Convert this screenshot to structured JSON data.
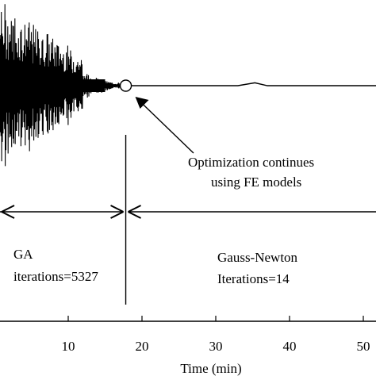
{
  "chart_data": {
    "type": "line",
    "title": "",
    "xlabel": "Time (min)",
    "ylabel": "",
    "xlim": [
      -1,
      52
    ],
    "x_ticks": [
      10,
      20,
      30,
      40,
      50
    ],
    "x_tick_labels": [
      "10",
      "20",
      "30",
      "40",
      "50"
    ],
    "grid": false,
    "legend": "none",
    "series": [
      {
        "description": "GA phase: dense oscillation that decays toward x≈17",
        "x_range": [
          -1,
          17
        ],
        "style": "dense-oscillation"
      },
      {
        "description": "Gauss-Newton phase: nearly flat line with a small bump near x≈35",
        "x": [
          17.8,
          25,
          33,
          35.3,
          37,
          45,
          52
        ],
        "y_relative": [
          0,
          0,
          0,
          0.6,
          0,
          0,
          0
        ]
      }
    ],
    "marker": {
      "x": 17.8,
      "shape": "open-circle"
    },
    "divider_x": 17.8,
    "annotations": {
      "optimization_line1": "Optimization continues",
      "optimization_line2": "using FE models",
      "ga_label": "GA",
      "ga_iterations": "iterations=5327",
      "gn_label": "Gauss-Newton",
      "gn_iterations": "Iterations=14"
    }
  }
}
